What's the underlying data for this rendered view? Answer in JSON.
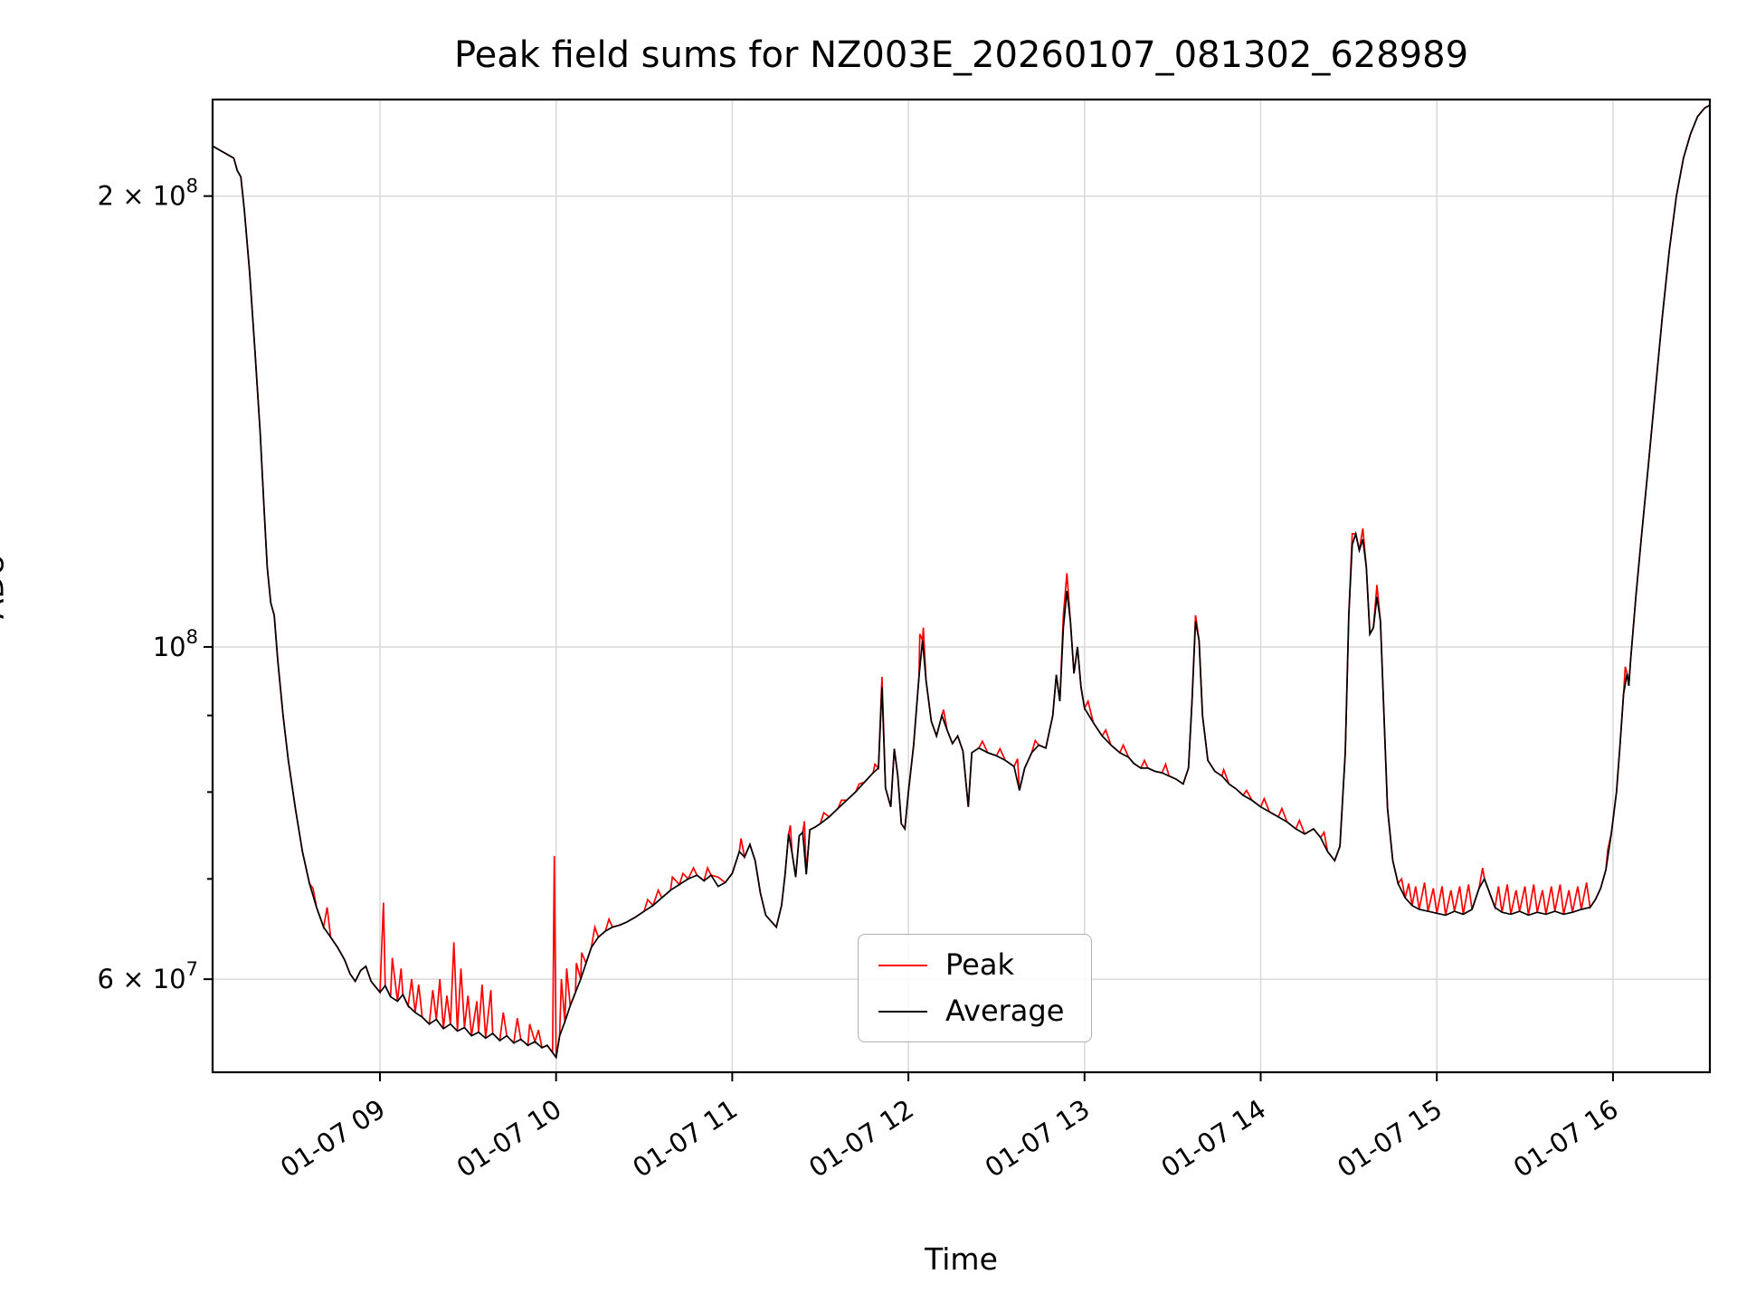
{
  "chart_data": {
    "type": "line",
    "title": "Peak field sums for NZ003E_20260107_081302_628989",
    "xlabel": "Time",
    "ylabel": "ADU",
    "yscale": "log",
    "grid": true,
    "grid_color": "#d9d9d9",
    "xlim_hours": [
      8.05,
      16.55
    ],
    "ylim": [
      52000000.0,
      232000000.0
    ],
    "value_unit": 10000000.0,
    "xticks": [
      {
        "h": 9,
        "label": "01-07 09"
      },
      {
        "h": 10,
        "label": "01-07 10"
      },
      {
        "h": 11,
        "label": "01-07 11"
      },
      {
        "h": 12,
        "label": "01-07 12"
      },
      {
        "h": 13,
        "label": "01-07 13"
      },
      {
        "h": 14,
        "label": "01-07 14"
      },
      {
        "h": 15,
        "label": "01-07 15"
      },
      {
        "h": 16,
        "label": "01-07 16"
      }
    ],
    "yticks": [
      {
        "v": 200000000.0,
        "base": "2 × 10",
        "exp": "8"
      },
      {
        "v": 100000000.0,
        "base": "10",
        "exp": "8"
      },
      {
        "v": 60000000.0,
        "base": "6 × 10",
        "exp": "7"
      }
    ],
    "yticks_minor": [
      70000000.0,
      80000000.0,
      90000000.0
    ],
    "legend": {
      "position": "lower-center",
      "entries": [
        {
          "label": "Peak",
          "color": "#ff0000"
        },
        {
          "label": "Average",
          "color": "#000000"
        }
      ]
    },
    "series_data": {
      "note": "values in units of 1e7 ADU; Peak equals Average except at peak_spikes points",
      "average": [
        [
          8.05,
          21.6
        ],
        [
          8.08,
          21.5
        ],
        [
          8.11,
          21.4
        ],
        [
          8.14,
          21.3
        ],
        [
          8.17,
          21.2
        ],
        [
          8.19,
          20.8
        ],
        [
          8.21,
          20.6
        ],
        [
          8.23,
          19.6
        ],
        [
          8.26,
          17.8
        ],
        [
          8.29,
          15.8
        ],
        [
          8.32,
          13.9
        ],
        [
          8.34,
          12.5
        ],
        [
          8.36,
          11.3
        ],
        [
          8.38,
          10.7
        ],
        [
          8.4,
          10.5
        ],
        [
          8.42,
          9.8
        ],
        [
          8.45,
          9.0
        ],
        [
          8.48,
          8.4
        ],
        [
          8.52,
          7.8
        ],
        [
          8.56,
          7.3
        ],
        [
          8.6,
          6.95
        ],
        [
          8.64,
          6.7
        ],
        [
          8.68,
          6.5
        ],
        [
          8.72,
          6.4
        ],
        [
          8.76,
          6.3
        ],
        [
          8.8,
          6.18
        ],
        [
          8.83,
          6.05
        ],
        [
          8.86,
          5.98
        ],
        [
          8.89,
          6.08
        ],
        [
          8.92,
          6.12
        ],
        [
          8.95,
          5.98
        ],
        [
          9.0,
          5.88
        ],
        [
          9.03,
          5.94
        ],
        [
          9.06,
          5.84
        ],
        [
          9.1,
          5.8
        ],
        [
          9.13,
          5.86
        ],
        [
          9.16,
          5.76
        ],
        [
          9.2,
          5.7
        ],
        [
          9.24,
          5.66
        ],
        [
          9.28,
          5.6
        ],
        [
          9.32,
          5.64
        ],
        [
          9.36,
          5.56
        ],
        [
          9.4,
          5.6
        ],
        [
          9.44,
          5.54
        ],
        [
          9.48,
          5.57
        ],
        [
          9.52,
          5.5
        ],
        [
          9.56,
          5.53
        ],
        [
          9.6,
          5.48
        ],
        [
          9.64,
          5.52
        ],
        [
          9.68,
          5.46
        ],
        [
          9.72,
          5.5
        ],
        [
          9.76,
          5.44
        ],
        [
          9.8,
          5.47
        ],
        [
          9.84,
          5.42
        ],
        [
          9.88,
          5.45
        ],
        [
          9.92,
          5.4
        ],
        [
          9.95,
          5.42
        ],
        [
          9.98,
          5.36
        ],
        [
          10.0,
          5.32
        ],
        [
          10.02,
          5.5
        ],
        [
          10.05,
          5.62
        ],
        [
          10.08,
          5.76
        ],
        [
          10.11,
          5.88
        ],
        [
          10.14,
          6.0
        ],
        [
          10.17,
          6.15
        ],
        [
          10.2,
          6.3
        ],
        [
          10.24,
          6.4
        ],
        [
          10.28,
          6.46
        ],
        [
          10.32,
          6.5
        ],
        [
          10.36,
          6.52
        ],
        [
          10.4,
          6.55
        ],
        [
          10.45,
          6.6
        ],
        [
          10.5,
          6.66
        ],
        [
          10.55,
          6.72
        ],
        [
          10.6,
          6.8
        ],
        [
          10.65,
          6.88
        ],
        [
          10.7,
          6.94
        ],
        [
          10.75,
          7.0
        ],
        [
          10.8,
          7.04
        ],
        [
          10.84,
          6.98
        ],
        [
          10.88,
          7.04
        ],
        [
          10.92,
          6.92
        ],
        [
          10.96,
          6.96
        ],
        [
          11.0,
          7.06
        ],
        [
          11.04,
          7.3
        ],
        [
          11.07,
          7.24
        ],
        [
          11.1,
          7.38
        ],
        [
          11.13,
          7.2
        ],
        [
          11.16,
          6.85
        ],
        [
          11.19,
          6.62
        ],
        [
          11.22,
          6.56
        ],
        [
          11.25,
          6.5
        ],
        [
          11.28,
          6.72
        ],
        [
          11.3,
          7.05
        ],
        [
          11.32,
          7.5
        ],
        [
          11.34,
          7.28
        ],
        [
          11.36,
          7.02
        ],
        [
          11.38,
          7.48
        ],
        [
          11.4,
          7.52
        ],
        [
          11.42,
          7.05
        ],
        [
          11.44,
          7.55
        ],
        [
          11.47,
          7.58
        ],
        [
          11.5,
          7.62
        ],
        [
          11.55,
          7.7
        ],
        [
          11.6,
          7.8
        ],
        [
          11.65,
          7.9
        ],
        [
          11.7,
          8.0
        ],
        [
          11.75,
          8.12
        ],
        [
          11.8,
          8.24
        ],
        [
          11.83,
          8.3
        ],
        [
          11.85,
          9.4
        ],
        [
          11.87,
          8.05
        ],
        [
          11.9,
          7.82
        ],
        [
          11.92,
          8.55
        ],
        [
          11.94,
          8.2
        ],
        [
          11.96,
          7.62
        ],
        [
          11.98,
          7.56
        ],
        [
          12.0,
          8.0
        ],
        [
          12.03,
          8.6
        ],
        [
          12.06,
          9.55
        ],
        [
          12.08,
          10.1
        ],
        [
          12.1,
          9.5
        ],
        [
          12.13,
          8.92
        ],
        [
          12.16,
          8.72
        ],
        [
          12.19,
          9.0
        ],
        [
          12.22,
          8.8
        ],
        [
          12.25,
          8.62
        ],
        [
          12.28,
          8.72
        ],
        [
          12.31,
          8.52
        ],
        [
          12.34,
          7.82
        ],
        [
          12.36,
          8.5
        ],
        [
          12.4,
          8.56
        ],
        [
          12.45,
          8.5
        ],
        [
          12.5,
          8.46
        ],
        [
          12.55,
          8.4
        ],
        [
          12.6,
          8.32
        ],
        [
          12.63,
          8.02
        ],
        [
          12.66,
          8.3
        ],
        [
          12.7,
          8.5
        ],
        [
          12.74,
          8.6
        ],
        [
          12.78,
          8.56
        ],
        [
          12.82,
          9.0
        ],
        [
          12.84,
          9.58
        ],
        [
          12.86,
          9.2
        ],
        [
          12.88,
          10.3
        ],
        [
          12.9,
          10.9
        ],
        [
          12.92,
          10.4
        ],
        [
          12.94,
          9.6
        ],
        [
          12.96,
          10.0
        ],
        [
          12.98,
          9.4
        ],
        [
          13.0,
          9.1
        ],
        [
          13.05,
          8.9
        ],
        [
          13.1,
          8.72
        ],
        [
          13.15,
          8.6
        ],
        [
          13.2,
          8.5
        ],
        [
          13.25,
          8.44
        ],
        [
          13.28,
          8.36
        ],
        [
          13.32,
          8.3
        ],
        [
          13.36,
          8.3
        ],
        [
          13.4,
          8.26
        ],
        [
          13.44,
          8.24
        ],
        [
          13.48,
          8.2
        ],
        [
          13.52,
          8.16
        ],
        [
          13.56,
          8.1
        ],
        [
          13.59,
          8.3
        ],
        [
          13.61,
          9.2
        ],
        [
          13.63,
          10.4
        ],
        [
          13.65,
          10.1
        ],
        [
          13.67,
          9.0
        ],
        [
          13.7,
          8.4
        ],
        [
          13.74,
          8.26
        ],
        [
          13.78,
          8.2
        ],
        [
          13.82,
          8.1
        ],
        [
          13.86,
          8.04
        ],
        [
          13.9,
          7.96
        ],
        [
          13.95,
          7.9
        ],
        [
          14.0,
          7.82
        ],
        [
          14.05,
          7.76
        ],
        [
          14.1,
          7.7
        ],
        [
          14.15,
          7.64
        ],
        [
          14.2,
          7.56
        ],
        [
          14.25,
          7.5
        ],
        [
          14.3,
          7.56
        ],
        [
          14.34,
          7.46
        ],
        [
          14.38,
          7.3
        ],
        [
          14.42,
          7.2
        ],
        [
          14.45,
          7.36
        ],
        [
          14.48,
          8.5
        ],
        [
          14.5,
          10.5
        ],
        [
          14.52,
          11.7
        ],
        [
          14.54,
          11.9
        ],
        [
          14.56,
          11.6
        ],
        [
          14.58,
          11.8
        ],
        [
          14.6,
          11.3
        ],
        [
          14.62,
          10.2
        ],
        [
          14.64,
          10.3
        ],
        [
          14.66,
          10.8
        ],
        [
          14.68,
          10.4
        ],
        [
          14.7,
          9.0
        ],
        [
          14.72,
          7.8
        ],
        [
          14.75,
          7.2
        ],
        [
          14.78,
          6.95
        ],
        [
          14.82,
          6.8
        ],
        [
          14.86,
          6.72
        ],
        [
          14.9,
          6.68
        ],
        [
          14.95,
          6.66
        ],
        [
          15.0,
          6.64
        ],
        [
          15.05,
          6.62
        ],
        [
          15.1,
          6.66
        ],
        [
          15.15,
          6.63
        ],
        [
          15.2,
          6.68
        ],
        [
          15.24,
          6.9
        ],
        [
          15.27,
          7.0
        ],
        [
          15.3,
          6.85
        ],
        [
          15.33,
          6.7
        ],
        [
          15.37,
          6.65
        ],
        [
          15.42,
          6.63
        ],
        [
          15.47,
          6.66
        ],
        [
          15.52,
          6.62
        ],
        [
          15.57,
          6.65
        ],
        [
          15.62,
          6.63
        ],
        [
          15.67,
          6.66
        ],
        [
          15.72,
          6.63
        ],
        [
          15.77,
          6.65
        ],
        [
          15.82,
          6.68
        ],
        [
          15.87,
          6.7
        ],
        [
          15.9,
          6.78
        ],
        [
          15.93,
          6.9
        ],
        [
          15.96,
          7.1
        ],
        [
          15.99,
          7.5
        ],
        [
          16.02,
          8.0
        ],
        [
          16.04,
          8.6
        ],
        [
          16.06,
          9.3
        ],
        [
          16.08,
          9.6
        ],
        [
          16.09,
          9.42
        ],
        [
          16.1,
          9.8
        ],
        [
          16.13,
          10.8
        ],
        [
          16.16,
          11.8
        ],
        [
          16.2,
          13.2
        ],
        [
          16.24,
          14.8
        ],
        [
          16.28,
          16.6
        ],
        [
          16.32,
          18.4
        ],
        [
          16.36,
          20.0
        ],
        [
          16.4,
          21.2
        ],
        [
          16.44,
          22.0
        ],
        [
          16.48,
          22.6
        ],
        [
          16.52,
          22.9
        ],
        [
          16.55,
          23.0
        ]
      ],
      "peak_spikes": [
        [
          8.62,
          6.9
        ],
        [
          8.7,
          6.7
        ],
        [
          9.02,
          6.75
        ],
        [
          9.07,
          6.2
        ],
        [
          9.12,
          6.1
        ],
        [
          9.18,
          6.0
        ],
        [
          9.22,
          5.95
        ],
        [
          9.3,
          5.9
        ],
        [
          9.34,
          6.0
        ],
        [
          9.38,
          5.85
        ],
        [
          9.42,
          6.35
        ],
        [
          9.46,
          6.1
        ],
        [
          9.5,
          5.85
        ],
        [
          9.55,
          5.8
        ],
        [
          9.58,
          5.95
        ],
        [
          9.63,
          5.9
        ],
        [
          9.7,
          5.7
        ],
        [
          9.78,
          5.65
        ],
        [
          9.85,
          5.6
        ],
        [
          9.9,
          5.55
        ],
        [
          9.99,
          7.25
        ],
        [
          10.03,
          6.0
        ],
        [
          10.06,
          6.1
        ],
        [
          10.115,
          6.15
        ],
        [
          10.145,
          6.25
        ],
        [
          10.22,
          6.5
        ],
        [
          10.3,
          6.58
        ],
        [
          10.52,
          6.78
        ],
        [
          10.58,
          6.88
        ],
        [
          10.66,
          7.02
        ],
        [
          10.72,
          7.06
        ],
        [
          10.78,
          7.12
        ],
        [
          10.86,
          7.12
        ],
        [
          10.92,
          7.02
        ],
        [
          11.05,
          7.45
        ],
        [
          11.33,
          7.6
        ],
        [
          11.41,
          7.65
        ],
        [
          11.52,
          7.75
        ],
        [
          11.62,
          7.9
        ],
        [
          11.72,
          8.1
        ],
        [
          11.81,
          8.35
        ],
        [
          11.85,
          9.55
        ],
        [
          12.065,
          10.2
        ],
        [
          12.085,
          10.3
        ],
        [
          12.2,
          9.08
        ],
        [
          12.42,
          8.65
        ],
        [
          12.52,
          8.55
        ],
        [
          12.62,
          8.42
        ],
        [
          12.72,
          8.66
        ],
        [
          12.88,
          10.5
        ],
        [
          12.9,
          11.2
        ],
        [
          13.02,
          9.2
        ],
        [
          13.12,
          8.8
        ],
        [
          13.22,
          8.6
        ],
        [
          13.34,
          8.4
        ],
        [
          13.46,
          8.35
        ],
        [
          13.63,
          10.5
        ],
        [
          13.79,
          8.28
        ],
        [
          13.92,
          8.02
        ],
        [
          14.02,
          7.92
        ],
        [
          14.12,
          7.8
        ],
        [
          14.22,
          7.66
        ],
        [
          14.36,
          7.52
        ],
        [
          14.52,
          11.9
        ],
        [
          14.58,
          12.0
        ],
        [
          14.66,
          11.0
        ],
        [
          14.8,
          7.0
        ],
        [
          14.84,
          6.95
        ],
        [
          14.88,
          6.92
        ],
        [
          14.93,
          6.96
        ],
        [
          14.98,
          6.9
        ],
        [
          15.03,
          6.92
        ],
        [
          15.08,
          6.88
        ],
        [
          15.13,
          6.92
        ],
        [
          15.18,
          6.94
        ],
        [
          15.26,
          7.12
        ],
        [
          15.35,
          6.92
        ],
        [
          15.4,
          6.94
        ],
        [
          15.45,
          6.88
        ],
        [
          15.5,
          6.92
        ],
        [
          15.55,
          6.94
        ],
        [
          15.6,
          6.88
        ],
        [
          15.65,
          6.92
        ],
        [
          15.7,
          6.94
        ],
        [
          15.75,
          6.88
        ],
        [
          15.8,
          6.92
        ],
        [
          15.85,
          6.96
        ],
        [
          15.97,
          7.32
        ],
        [
          16.07,
          9.7
        ]
      ]
    }
  }
}
